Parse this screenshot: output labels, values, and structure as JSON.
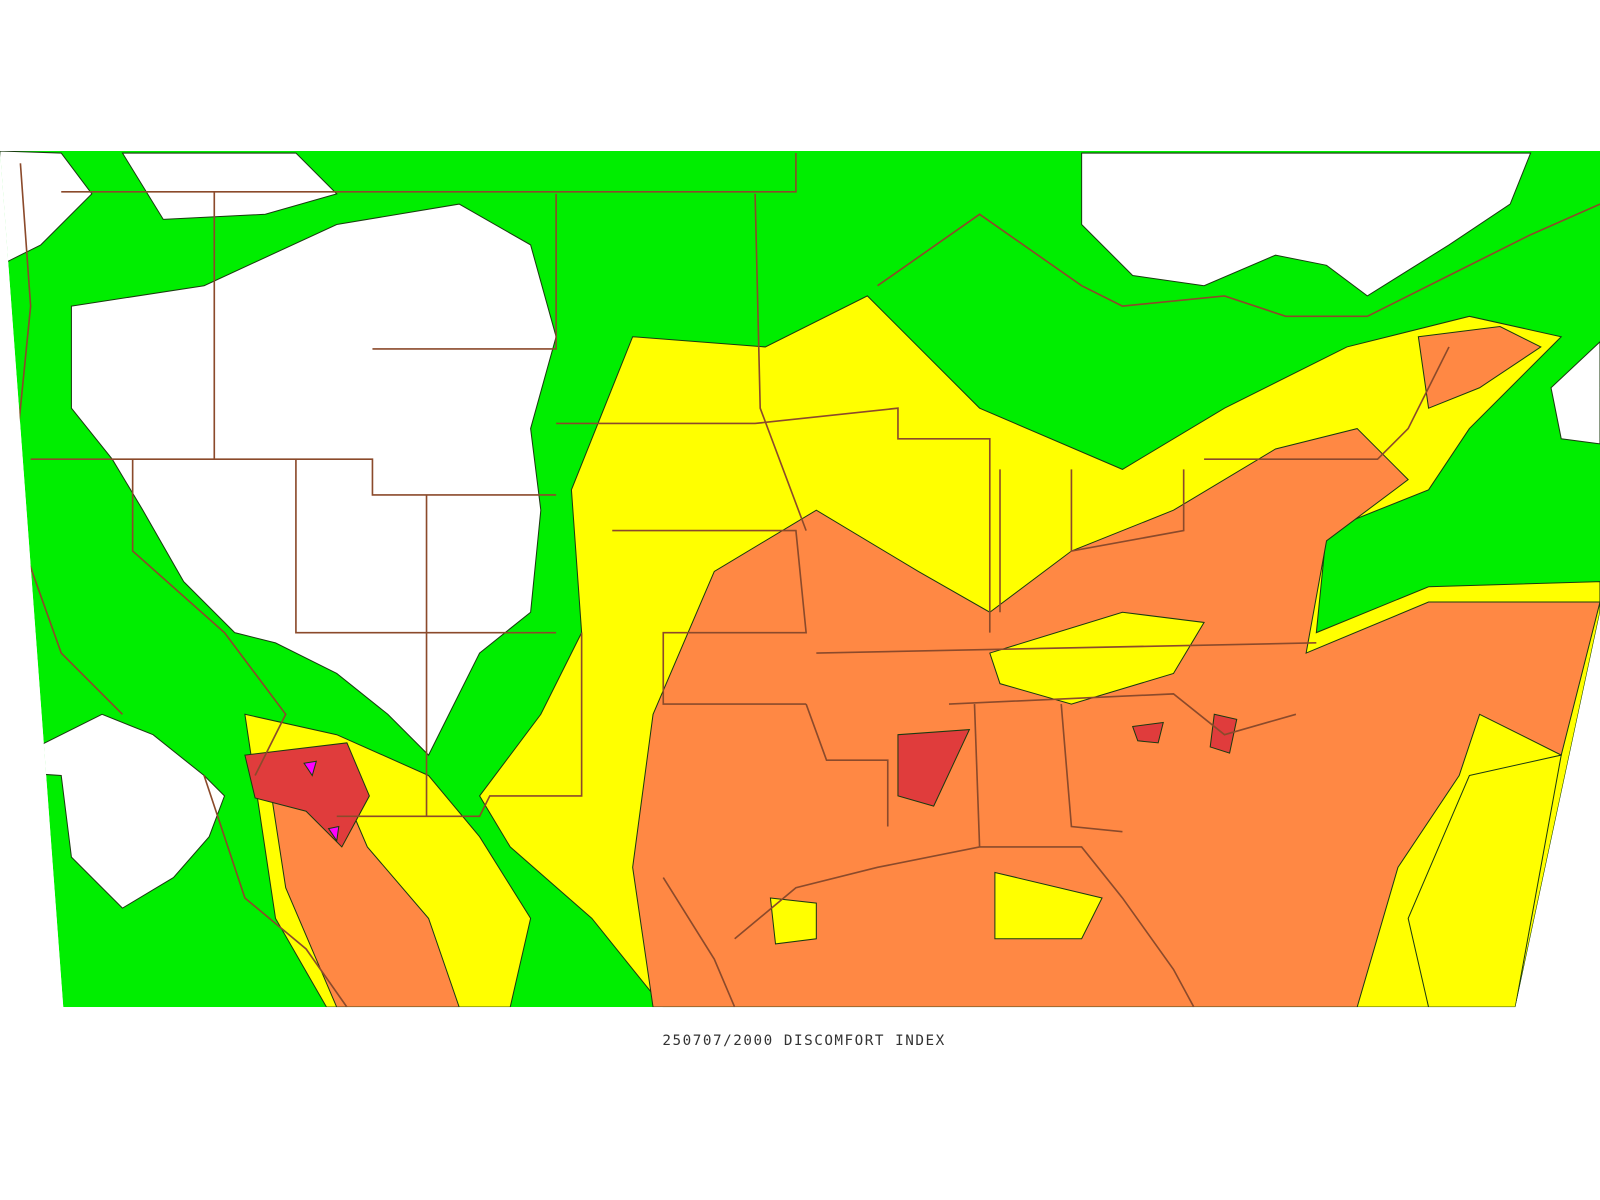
{
  "caption": "250707/2000 DISCOMFORT INDEX"
}
